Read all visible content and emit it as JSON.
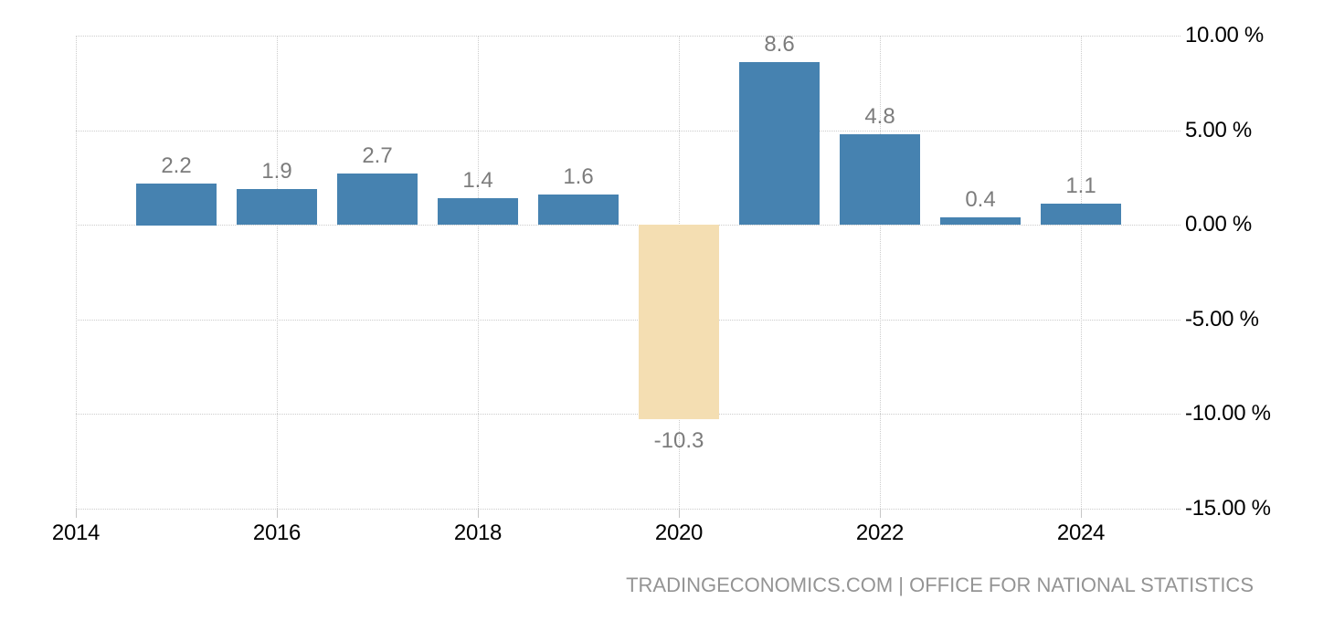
{
  "chart_data": {
    "type": "bar",
    "title": "",
    "unit": "%",
    "categories": [
      2015,
      2016,
      2017,
      2018,
      2019,
      2020,
      2021,
      2022,
      2023,
      2024
    ],
    "values": [
      2.2,
      1.9,
      2.7,
      1.4,
      1.6,
      -10.3,
      8.6,
      4.8,
      0.4,
      1.1
    ],
    "data_labels": [
      "2.2",
      "1.9",
      "2.7",
      "1.4",
      "1.6",
      "-10.3",
      "8.6",
      "4.8",
      "0.4",
      "1.1"
    ],
    "x_axis": {
      "tick_years": [
        2014,
        2016,
        2018,
        2020,
        2022,
        2024
      ],
      "tick_labels": [
        "2014",
        "2016",
        "2018",
        "2020",
        "2022",
        "2024"
      ]
    },
    "y_axis": {
      "side": "right",
      "range": [
        -15,
        10
      ],
      "ticks": [
        {
          "value": 10,
          "label": "10.00 %"
        },
        {
          "value": 5,
          "label": "5.00 %"
        },
        {
          "value": 0,
          "label": "0.00 %"
        },
        {
          "value": -5,
          "label": "-5.00 %"
        },
        {
          "value": -10,
          "label": "-10.00 %"
        },
        {
          "value": -15,
          "label": "-15.00 %"
        }
      ]
    },
    "grid": "dotted",
    "legend": "none",
    "colors": {
      "positive_bar": "#4682B0",
      "negative_bar": "#F4DEB2",
      "grid_line": "#CCCCCC",
      "data_label": "#7C7C7C",
      "axis_label": "#000000",
      "attribution_text": "#949494"
    }
  },
  "footer": {
    "attribution": "TRADINGECONOMICS.COM | OFFICE FOR NATIONAL STATISTICS"
  }
}
